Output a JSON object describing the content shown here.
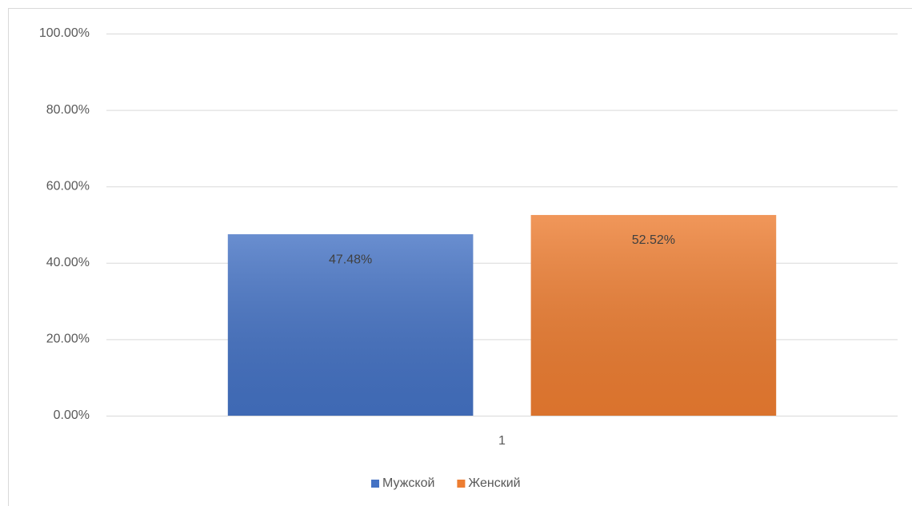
{
  "chart_data": {
    "type": "bar",
    "categories": [
      "1"
    ],
    "series": [
      {
        "name": "Мужской",
        "color": "#4472c4",
        "values": [
          47.48
        ],
        "value_labels": [
          "47.48%"
        ]
      },
      {
        "name": "Женский",
        "color": "#ed7d31",
        "values": [
          52.52
        ],
        "value_labels": [
          "52.52%"
        ]
      }
    ],
    "ylim": [
      0,
      100
    ],
    "yticks": [
      {
        "value": 0,
        "label": "0.00%"
      },
      {
        "value": 20,
        "label": "20.00%"
      },
      {
        "value": 40,
        "label": "40.00%"
      },
      {
        "value": 60,
        "label": "60.00%"
      },
      {
        "value": 80,
        "label": "80.00%"
      },
      {
        "value": 100,
        "label": "100.00%"
      }
    ],
    "grid": true,
    "legend": "bottom"
  }
}
